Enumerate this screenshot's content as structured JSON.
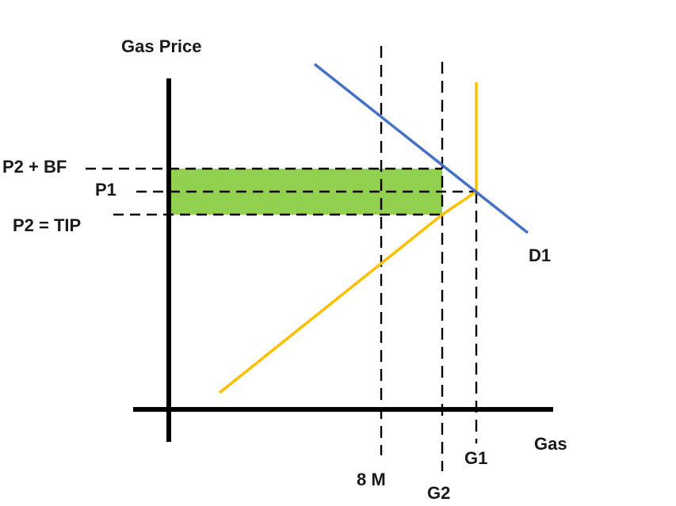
{
  "labels": {
    "y_axis": "Gas Price",
    "x_axis": "Gas",
    "p2_plus_bf": "P2 + BF",
    "p1": "P1",
    "p2_tip": "P2 = TIP",
    "demand": "D1",
    "eight_m": "8 M",
    "g2": "G2",
    "g1": "G1"
  },
  "colors": {
    "demand_curve": "#4472C4",
    "supply_curve": "#FFC000",
    "shaded_area": "#92D050",
    "axes": "#000000"
  }
}
